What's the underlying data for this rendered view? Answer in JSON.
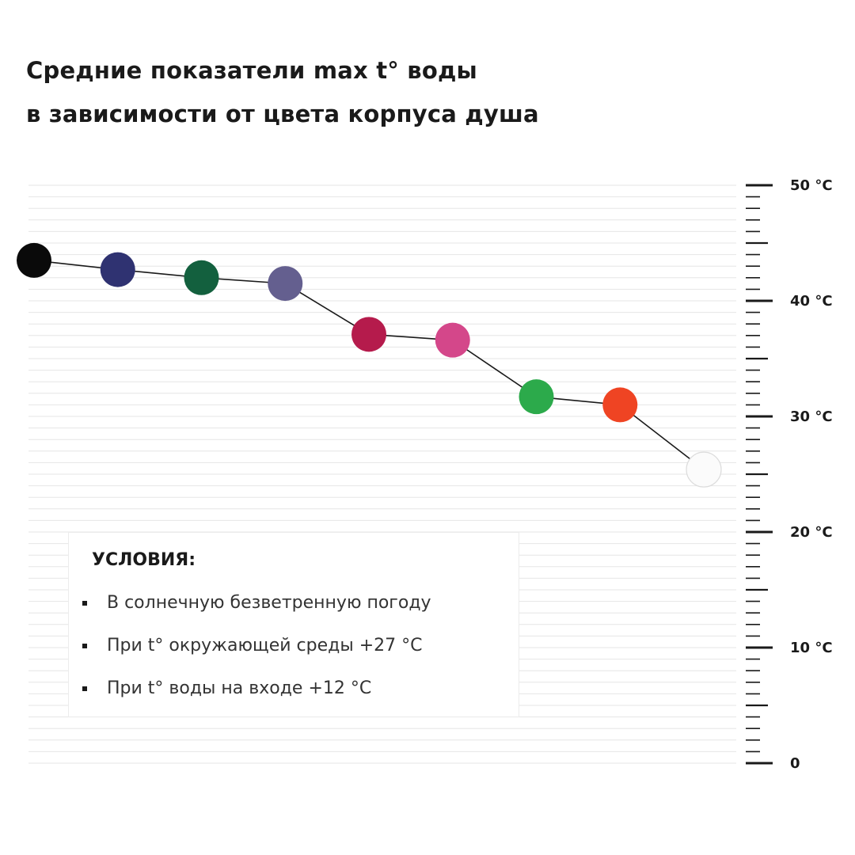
{
  "title_lines": [
    "Средние показатели max t° воды",
    "в зависимости от цвета корпуса душа"
  ],
  "chart_data": {
    "type": "line",
    "title": "Средние показатели max t° воды в зависимости от цвета корпуса душа",
    "xlabel": "",
    "ylabel": "",
    "ylim": [
      0,
      50
    ],
    "y_ticks": [
      {
        "value": 50,
        "label": "50 °C"
      },
      {
        "value": 40,
        "label": "40 °C"
      },
      {
        "value": 30,
        "label": "30 °C"
      },
      {
        "value": 20,
        "label": "20 °C"
      },
      {
        "value": 10,
        "label": "10 °C"
      },
      {
        "value": 0,
        "label": "0"
      }
    ],
    "y_minor_step": 1,
    "y_mid_step": 5,
    "grid": true,
    "axis_position": "right",
    "points": [
      {
        "value": 43.5,
        "color": "#0a0a0a"
      },
      {
        "value": 42.7,
        "color": "#2f3271"
      },
      {
        "value": 42.0,
        "color": "#13603e"
      },
      {
        "value": 41.5,
        "color": "#645f8f"
      },
      {
        "value": 37.1,
        "color": "#b51b4c"
      },
      {
        "value": 36.6,
        "color": "#d4478a"
      },
      {
        "value": 31.7,
        "color": "#2caa4b"
      },
      {
        "value": 31.0,
        "color": "#ef4423"
      },
      {
        "value": 25.4,
        "color": "#fbfbfb"
      }
    ],
    "line_color": "#1a1a1a"
  },
  "conditions": {
    "title": "УСЛОВИЯ:",
    "items": [
      "В солнечную безветренную погоду",
      "При t° окружающей среды +27 °C",
      "При t° воды на входе +12 °C"
    ]
  }
}
